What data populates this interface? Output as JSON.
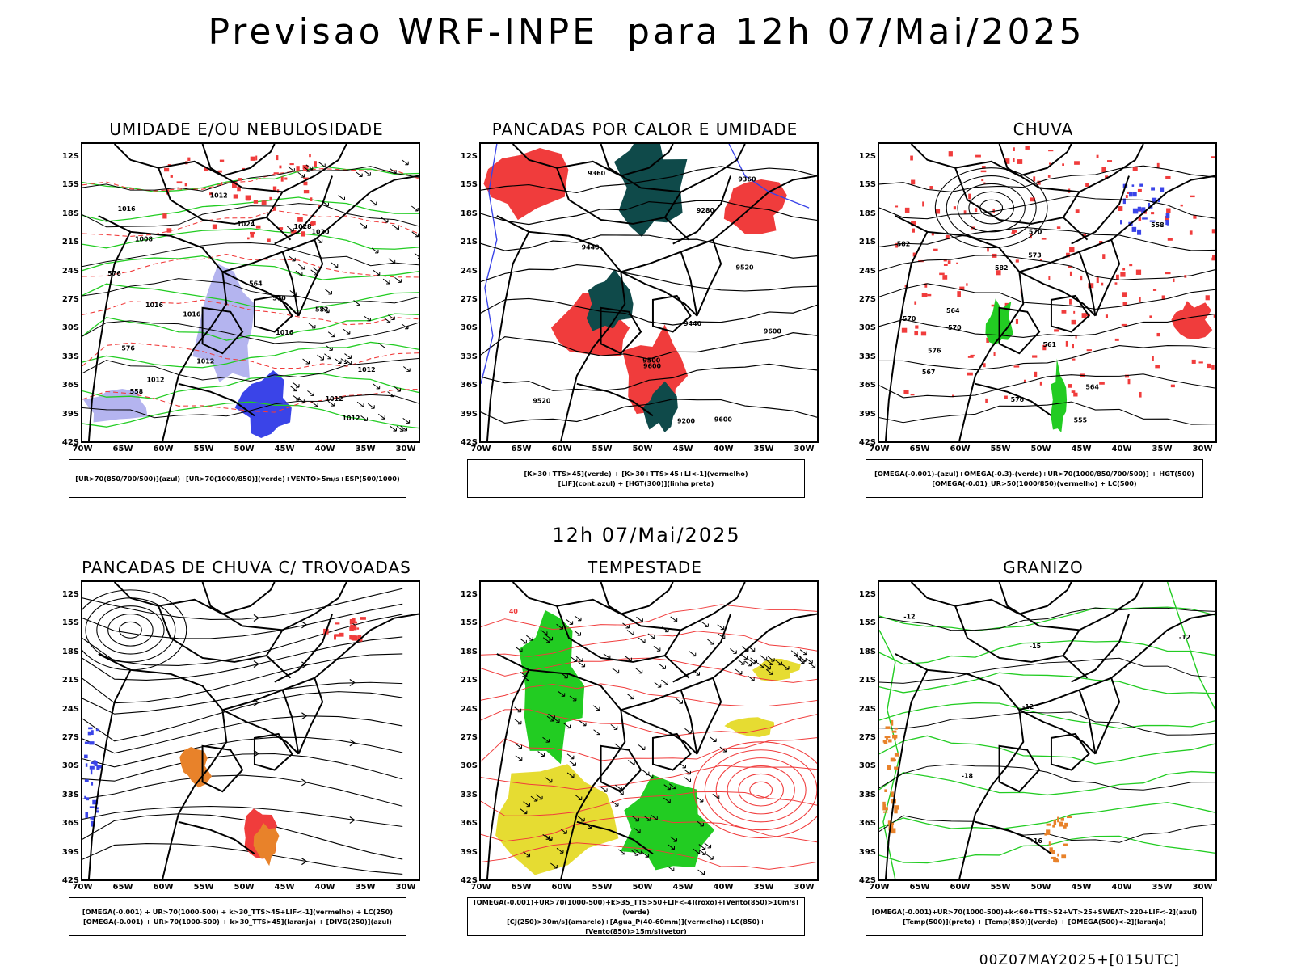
{
  "header": {
    "title": "Previsao WRF-INPE  para 12h 07/Mai/2025"
  },
  "center_time": "12h 07/Mai/2025",
  "footer": "00Z07MAY2025+[015UTC]",
  "axes": {
    "lat_labels": [
      "12S",
      "15S",
      "18S",
      "21S",
      "24S",
      "27S",
      "30S",
      "33S",
      "36S",
      "39S",
      "42S"
    ],
    "lon_labels": [
      "70W",
      "65W",
      "60W",
      "55W",
      "50W",
      "45W",
      "40W",
      "35W",
      "30W"
    ]
  },
  "colors": {
    "red": "#f03c3c",
    "green": "#22cc22",
    "blue": "#3a44e8",
    "lavender": "#b4b4ef",
    "dark_teal": "#0f4a4a",
    "yellow": "#e6dc32",
    "orange": "#e8822a",
    "black": "#000000"
  },
  "panels": [
    {
      "title": "UMIDADE E/OU NEBULOSIDADE",
      "legend": [
        "[UR>70(850/700/500)](azul)+[UR>70(1000/850)](verde)+VENTO>5m/s+ESP(500/1000)"
      ],
      "contour_labels": [
        "1012",
        "1016",
        "1016",
        "1016",
        "1012",
        "1008",
        "1012",
        "1016",
        "1020",
        "1024",
        "1028",
        "1012",
        "1012",
        "1012",
        "570",
        "576",
        "582",
        "564",
        "576",
        "558"
      ]
    },
    {
      "title": "PANCADAS POR CALOR E UMIDADE",
      "legend": [
        "[K>30+TTS>45](verde) + [K>30+TTS>45+LI<-1](vermelho)",
        "[LIF](cont.azul) + [HGT(300)](linha preta)"
      ],
      "contour_labels": [
        "9600",
        "9600",
        "9600",
        "9520",
        "9500",
        "9440",
        "9360",
        "9280",
        "9200",
        "9520",
        "9440",
        "9360"
      ]
    },
    {
      "title": "CHUVA",
      "legend": [
        "[OMEGA(-0.001)-(azul)+OMEGA(-0.3)-(verde)+UR>70(1000/850/700/500)] + HGT(500)",
        "[OMEGA(-0.01)_UR>50(1000/850)(vermelho) + LC(500)"
      ],
      "contour_labels": [
        "582",
        "582",
        "576",
        "570",
        "576",
        "573",
        "570",
        "567",
        "561",
        "564",
        "555",
        "558",
        "564",
        "570"
      ]
    },
    {
      "title": "PANCADAS DE CHUVA C/ TROVOADAS",
      "legend": [
        "[OMEGA(-0.001) + UR>70(1000-500) + k>30_TTS>45+LIF<-1](vermelho) + LC(250)",
        "[OMEGA(-0.001) + UR>70(1000-500) + k>30_TTS>45](laranja) + [DIVG(250)](azul)"
      ],
      "contour_labels": []
    },
    {
      "title": "TEMPESTADE",
      "legend": [
        "[OMEGA(-0.001)+UR>70(1000-500)+k>35_TTS>50+LIF<-4](roxo)+[Vento(850)>10m/s](verde)",
        "[CJ(250)>30m/s](amarelo)+[Agua_P(40-60mm)](vermelho)+LC(850)+[Vento(850)>15m/s](vetor)"
      ],
      "contour_labels": [
        "40"
      ]
    },
    {
      "title": "GRANIZO",
      "legend": [
        "[OMEGA(-0.001)+UR>70(1000-500)+k<60+TTS>52+VT>25+SWEAT>220+LIF<-2](azul)",
        "[Temp(500)](preto) + [Temp(850)](verde) + [OMEGA(500)<-2](laranja)"
      ],
      "contour_labels": [
        "-12",
        "-12",
        "-15",
        "-18",
        "-12",
        "-16"
      ]
    }
  ]
}
